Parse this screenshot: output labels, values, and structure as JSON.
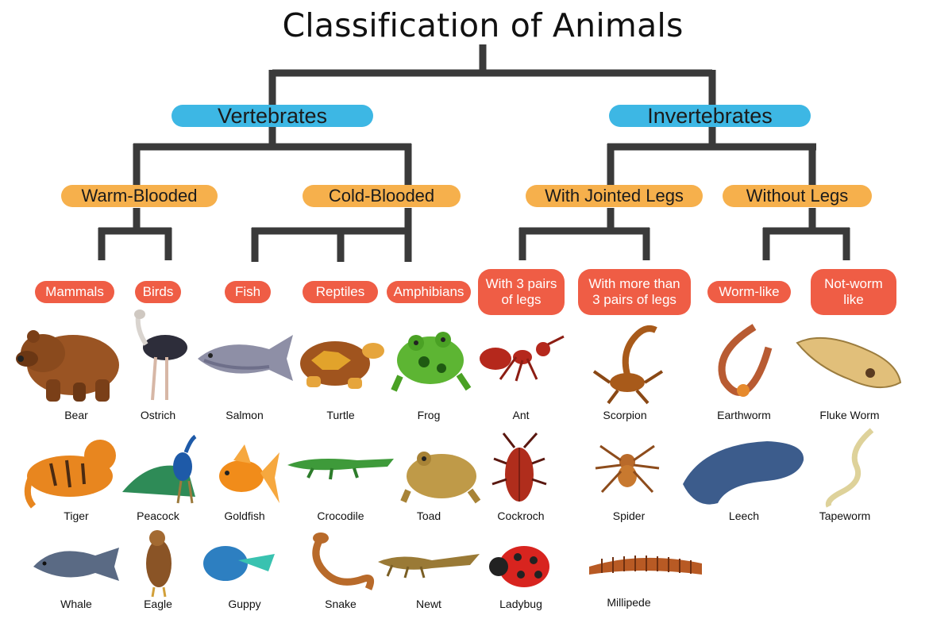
{
  "title": "Classification of Animals",
  "nodes": {
    "vertebrates": "Vertebrates",
    "invertebrates": "Invertebrates",
    "warm_blooded": "Warm-Blooded",
    "cold_blooded": "Cold-Blooded",
    "with_jointed_legs": "With Jointed Legs",
    "without_legs": "Without Legs",
    "mammals": "Mammals",
    "birds": "Birds",
    "fish": "Fish",
    "reptiles": "Reptiles",
    "amphibians": "Amphibians",
    "three_pairs": "With 3 pairs of legs",
    "more_than_three": "With more than 3 pairs of legs",
    "worm_like": "Worm-like",
    "not_worm_like": "Not-worm like"
  },
  "animals": [
    {
      "name": "Bear",
      "icon": "bear-icon"
    },
    {
      "name": "Ostrich",
      "icon": "ostrich-icon"
    },
    {
      "name": "Salmon",
      "icon": "salmon-icon"
    },
    {
      "name": "Turtle",
      "icon": "turtle-icon"
    },
    {
      "name": "Frog",
      "icon": "frog-icon"
    },
    {
      "name": "Ant",
      "icon": "ant-icon"
    },
    {
      "name": "Scorpion",
      "icon": "scorpion-icon"
    },
    {
      "name": "Earthworm",
      "icon": "earthworm-icon"
    },
    {
      "name": "Fluke Worm",
      "icon": "fluke-worm-icon"
    },
    {
      "name": "Tiger",
      "icon": "tiger-icon"
    },
    {
      "name": "Peacock",
      "icon": "peacock-icon"
    },
    {
      "name": "Goldfish",
      "icon": "goldfish-icon"
    },
    {
      "name": "Crocodile",
      "icon": "crocodile-icon"
    },
    {
      "name": "Toad",
      "icon": "toad-icon"
    },
    {
      "name": "Cockroch",
      "icon": "cockroach-icon"
    },
    {
      "name": "Spider",
      "icon": "spider-icon"
    },
    {
      "name": "Leech",
      "icon": "leech-icon"
    },
    {
      "name": "Tapeworm",
      "icon": "tapeworm-icon"
    },
    {
      "name": "Whale",
      "icon": "whale-icon"
    },
    {
      "name": "Eagle",
      "icon": "eagle-icon"
    },
    {
      "name": "Guppy",
      "icon": "guppy-icon"
    },
    {
      "name": "Snake",
      "icon": "snake-icon"
    },
    {
      "name": "Newt",
      "icon": "newt-icon"
    },
    {
      "name": "Ladybug",
      "icon": "ladybug-icon"
    },
    {
      "name": "Millipede",
      "icon": "millipede-icon"
    }
  ],
  "colors": {
    "connector": "#3a3a3a",
    "level1": "#3db7e4",
    "level2": "#f6b04c",
    "level3": "#ef5d45"
  }
}
